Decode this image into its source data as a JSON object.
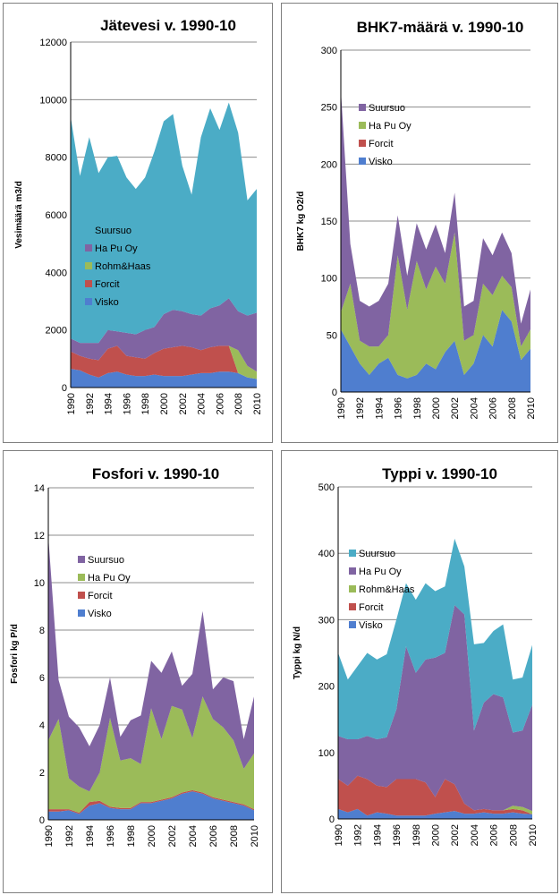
{
  "chart_data": [
    {
      "type": "area",
      "title": "Jätevesi v. 1990-10",
      "xlabel": "",
      "ylabel": "Vesimäärä m3/d",
      "ylim": [
        0,
        12000
      ],
      "yticks": [
        0,
        2000,
        4000,
        6000,
        8000,
        10000,
        12000
      ],
      "x": [
        1990,
        1991,
        1992,
        1993,
        1994,
        1995,
        1996,
        1997,
        1998,
        1999,
        2000,
        2001,
        2002,
        2003,
        2004,
        2005,
        2006,
        2007,
        2008,
        2009,
        2010
      ],
      "xticks": [
        1990,
        1992,
        1994,
        1996,
        1998,
        2000,
        2002,
        2004,
        2006,
        2008,
        2010
      ],
      "legend_position": "left-middle",
      "series": [
        {
          "name": "Visko",
          "color": "#4f7ecf",
          "values": [
            650,
            600,
            450,
            350,
            500,
            550,
            450,
            400,
            400,
            450,
            400,
            400,
            400,
            450,
            500,
            500,
            550,
            550,
            500,
            350,
            300
          ]
        },
        {
          "name": "Forcit",
          "color": "#c0504d",
          "values": [
            600,
            500,
            550,
            600,
            850,
            900,
            650,
            650,
            600,
            750,
            950,
            1000,
            1050,
            950,
            800,
            900,
            900,
            900,
            0,
            0,
            0
          ]
        },
        {
          "name": "Rohm&Haas",
          "color": "#9bbb59",
          "values": [
            0,
            0,
            0,
            0,
            0,
            0,
            0,
            0,
            0,
            0,
            0,
            0,
            0,
            0,
            0,
            0,
            0,
            0,
            800,
            400,
            250
          ]
        },
        {
          "name": "Ha Pu Oy",
          "color": "#8064a2",
          "values": [
            450,
            450,
            550,
            600,
            650,
            500,
            800,
            800,
            1000,
            900,
            1200,
            1300,
            1200,
            1150,
            1200,
            1350,
            1400,
            1650,
            1350,
            1750,
            2050
          ]
        },
        {
          "name": "Suursuo",
          "color": "#4bacc6",
          "values": [
            7700,
            5800,
            7150,
            5900,
            6000,
            6100,
            5400,
            5050,
            5300,
            6100,
            6700,
            6800,
            5050,
            4150,
            6200,
            6950,
            6100,
            6800,
            6200,
            4000,
            4300
          ]
        }
      ]
    },
    {
      "type": "area",
      "title": "BHK7-määrä v. 1990-10",
      "xlabel": "",
      "ylabel": "BHK7 kg O2/d",
      "ylim": [
        0,
        300
      ],
      "yticks": [
        0,
        50,
        100,
        150,
        200,
        250,
        300
      ],
      "x": [
        1990,
        1991,
        1992,
        1993,
        1994,
        1995,
        1996,
        1997,
        1998,
        1999,
        2000,
        2001,
        2002,
        2003,
        2004,
        2005,
        2006,
        2007,
        2008,
        2009,
        2010
      ],
      "xticks": [
        1990,
        1992,
        1994,
        1996,
        1998,
        2000,
        2002,
        2004,
        2006,
        2008,
        2010
      ],
      "legend_position": "top-left",
      "series": [
        {
          "name": "Visko",
          "color": "#4f7ecf",
          "values": [
            55,
            40,
            25,
            15,
            25,
            30,
            15,
            12,
            15,
            25,
            20,
            35,
            45,
            15,
            25,
            50,
            40,
            72,
            62,
            28,
            38
          ]
        },
        {
          "name": "Forcit",
          "color": "#c0504d",
          "values": [
            0,
            0,
            0,
            0,
            0,
            0,
            0,
            0,
            0,
            0,
            0,
            0,
            0,
            0,
            0,
            0,
            0,
            0,
            0,
            0,
            0
          ]
        },
        {
          "name": "Ha Pu Oy",
          "color": "#9bbb59",
          "values": [
            15,
            55,
            20,
            25,
            15,
            20,
            105,
            60,
            100,
            65,
            90,
            60,
            95,
            30,
            25,
            45,
            45,
            30,
            30,
            12,
            17
          ]
        },
        {
          "name": "Suursuo",
          "color": "#8064a2",
          "values": [
            195,
            35,
            35,
            35,
            40,
            45,
            35,
            30,
            33,
            35,
            37,
            27,
            35,
            30,
            30,
            40,
            35,
            38,
            30,
            20,
            35
          ]
        }
      ]
    },
    {
      "type": "area",
      "title": "Fosfori v. 1990-10",
      "xlabel": "",
      "ylabel": "Fosfori kg P/d",
      "ylim": [
        0,
        14
      ],
      "yticks": [
        0,
        2,
        4,
        6,
        8,
        10,
        12,
        14
      ],
      "x": [
        1990,
        1991,
        1992,
        1993,
        1994,
        1995,
        1996,
        1997,
        1998,
        1999,
        2000,
        2001,
        2002,
        2003,
        2004,
        2005,
        2006,
        2007,
        2008,
        2009,
        2010
      ],
      "xticks": [
        1990,
        1992,
        1994,
        1996,
        1998,
        2000,
        2002,
        2004,
        2006,
        2008,
        2010
      ],
      "legend_position": "top-left",
      "series": [
        {
          "name": "Visko",
          "color": "#4f7ecf",
          "values": [
            0.35,
            0.35,
            0.4,
            0.25,
            0.6,
            0.7,
            0.5,
            0.45,
            0.45,
            0.7,
            0.7,
            0.8,
            0.9,
            1.1,
            1.2,
            1.1,
            0.9,
            0.8,
            0.7,
            0.6,
            0.4
          ]
        },
        {
          "name": "Forcit",
          "color": "#c0504d",
          "values": [
            0.1,
            0.1,
            0.05,
            0.05,
            0.15,
            0.1,
            0.05,
            0.05,
            0.05,
            0.05,
            0.05,
            0.05,
            0.05,
            0.05,
            0.05,
            0.05,
            0.05,
            0.05,
            0.05,
            0.05,
            0.05
          ]
        },
        {
          "name": "Ha Pu Oy",
          "color": "#9bbb59",
          "values": [
            2.9,
            3.8,
            1.3,
            1.1,
            0.45,
            1.2,
            3.75,
            2.0,
            2.1,
            1.6,
            3.95,
            2.55,
            3.85,
            3.5,
            2.2,
            4.05,
            3.3,
            3.05,
            2.6,
            1.5,
            2.35
          ]
        },
        {
          "name": "Suursuo",
          "color": "#8064a2",
          "values": [
            8.6,
            1.65,
            2.6,
            2.5,
            1.9,
            2.0,
            1.7,
            1.0,
            1.6,
            2.05,
            2.0,
            2.8,
            2.3,
            1.0,
            2.7,
            3.6,
            1.25,
            2.1,
            2.5,
            1.25,
            2.4
          ]
        }
      ]
    },
    {
      "type": "area",
      "title": "Typpi v. 1990-10",
      "xlabel": "",
      "ylabel": "Typpi kg N/d",
      "ylim": [
        0,
        500
      ],
      "yticks": [
        0,
        100,
        200,
        300,
        400,
        500
      ],
      "x": [
        1990,
        1991,
        1992,
        1993,
        1994,
        1995,
        1996,
        1997,
        1998,
        1999,
        2000,
        2001,
        2002,
        2003,
        2004,
        2005,
        2006,
        2007,
        2008,
        2009,
        2010
      ],
      "xticks": [
        1990,
        1992,
        1994,
        1996,
        1998,
        2000,
        2002,
        2004,
        2006,
        2008,
        2010
      ],
      "legend_position": "top-left",
      "series": [
        {
          "name": "Visko",
          "color": "#4f7ecf",
          "values": [
            15,
            10,
            15,
            5,
            10,
            8,
            5,
            5,
            5,
            5,
            8,
            10,
            12,
            8,
            8,
            10,
            8,
            8,
            10,
            8,
            7
          ]
        },
        {
          "name": "Forcit",
          "color": "#c0504d",
          "values": [
            45,
            40,
            50,
            55,
            40,
            40,
            55,
            55,
            55,
            50,
            25,
            50,
            40,
            15,
            5,
            5,
            5,
            5,
            5,
            5,
            0
          ]
        },
        {
          "name": "Rohm&Haas",
          "color": "#9bbb59",
          "values": [
            0,
            0,
            0,
            0,
            0,
            0,
            0,
            0,
            0,
            0,
            0,
            0,
            0,
            0,
            0,
            0,
            0,
            0,
            5,
            5,
            5
          ]
        },
        {
          "name": "Ha Pu Oy",
          "color": "#8064a2",
          "values": [
            65,
            70,
            55,
            65,
            70,
            75,
            105,
            200,
            160,
            185,
            210,
            190,
            270,
            285,
            120,
            160,
            175,
            170,
            110,
            115,
            160
          ]
        },
        {
          "name": "Suursuo",
          "color": "#4bacc6",
          "values": [
            125,
            90,
            110,
            125,
            120,
            125,
            135,
            95,
            110,
            115,
            100,
            100,
            100,
            72,
            130,
            90,
            95,
            110,
            80,
            80,
            90
          ]
        }
      ]
    }
  ]
}
